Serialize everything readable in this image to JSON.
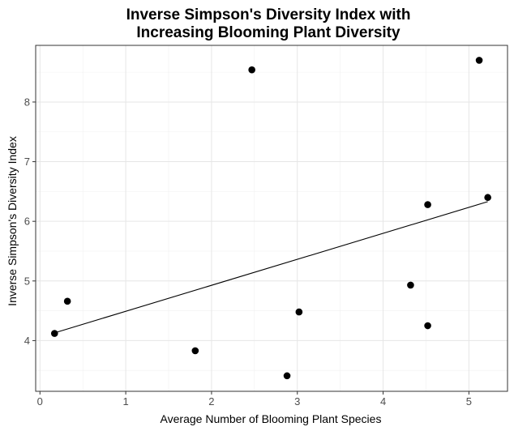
{
  "chart_data": {
    "type": "scatter",
    "title_lines": [
      "Inverse Simpson's Diversity Index with",
      "Increasing Blooming Plant Diversity"
    ],
    "xlabel": "Average Number of Blooming Plant Species",
    "ylabel": "Inverse Simpson's Diversity Index",
    "xlim": [
      -0.05,
      5.45
    ],
    "ylim": [
      3.15,
      8.95
    ],
    "x_ticks": [
      0,
      1,
      2,
      3,
      4,
      5
    ],
    "y_ticks": [
      4,
      5,
      6,
      7,
      8
    ],
    "x_tick_labels": [
      "0",
      "1",
      "2",
      "3",
      "4",
      "5"
    ],
    "y_tick_labels": [
      "4",
      "5",
      "6",
      "7",
      "8"
    ],
    "grid": true,
    "point_color": "#000000",
    "points": [
      {
        "x": 0.17,
        "y": 4.12
      },
      {
        "x": 0.32,
        "y": 4.66
      },
      {
        "x": 1.81,
        "y": 3.83
      },
      {
        "x": 2.47,
        "y": 8.54
      },
      {
        "x": 2.88,
        "y": 3.41
      },
      {
        "x": 3.02,
        "y": 4.48
      },
      {
        "x": 4.32,
        "y": 4.93
      },
      {
        "x": 4.52,
        "y": 6.28
      },
      {
        "x": 4.52,
        "y": 4.25
      },
      {
        "x": 5.12,
        "y": 8.7
      },
      {
        "x": 5.22,
        "y": 6.4
      }
    ],
    "trend_line": {
      "x": [
        0.17,
        5.22
      ],
      "y": [
        4.13,
        6.33
      ]
    }
  }
}
